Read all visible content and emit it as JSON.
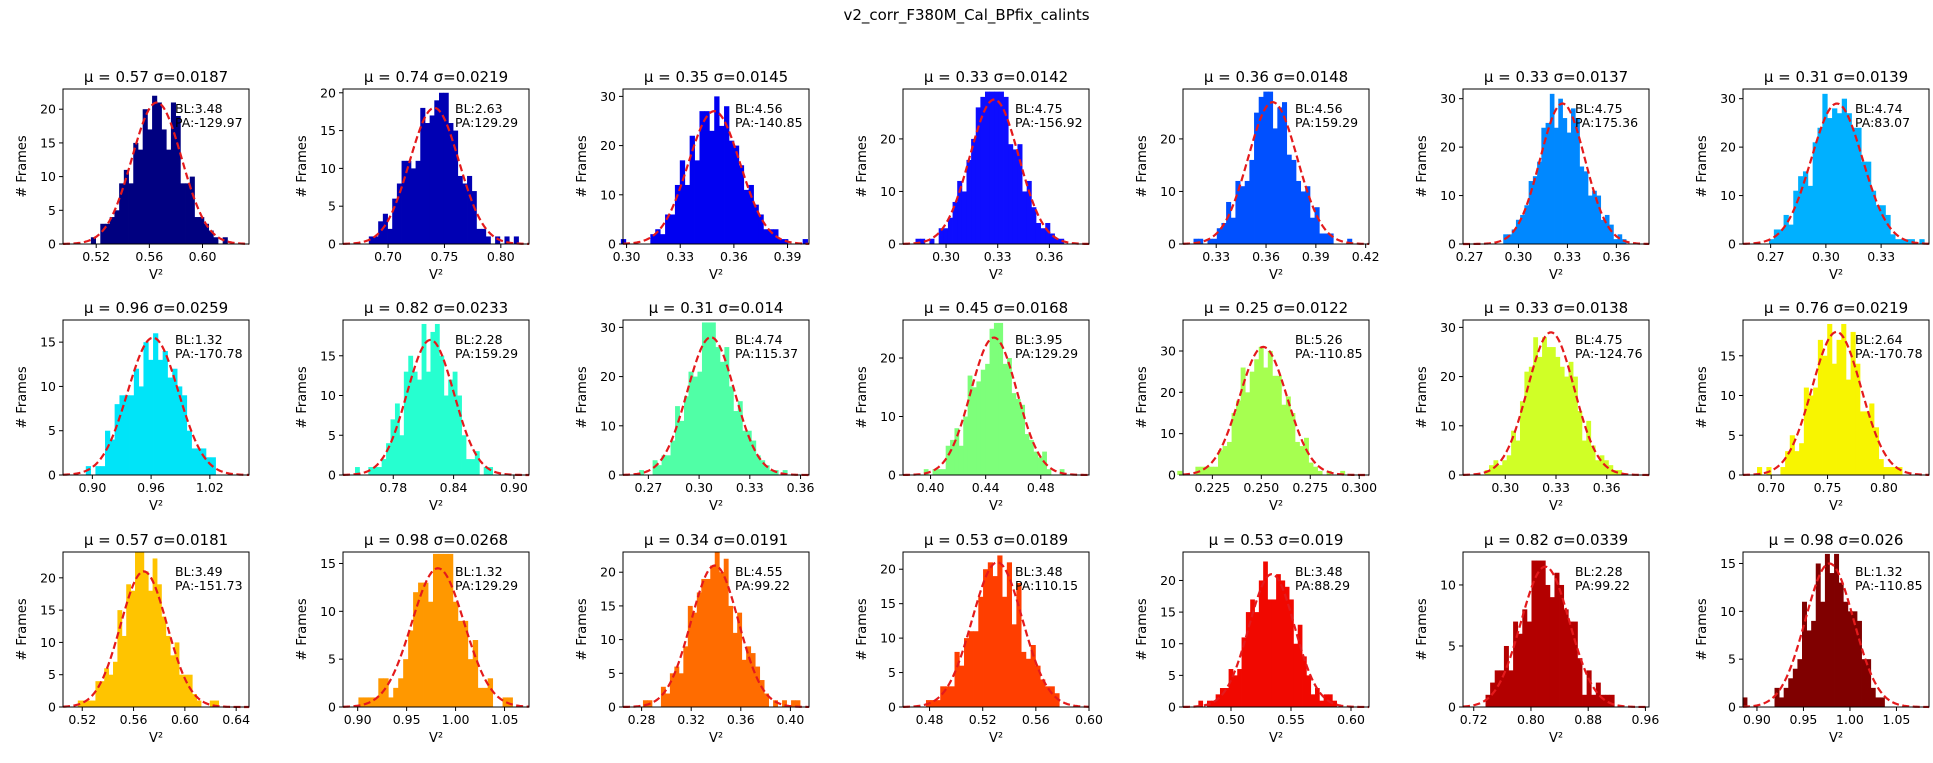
{
  "figure": {
    "suptitle": "v2_corr_F380M_Cal_BPfix_calints",
    "xlabel": "V²",
    "ylabel": "# Frames",
    "fit_color": "#e41a1c"
  },
  "chart_data": [
    {
      "type": "bar",
      "title": "μ = 0.57 σ=0.0187",
      "color": "#000080",
      "mu": 0.5656,
      "sigma": 0.0187,
      "peak": 21,
      "xlim": [
        0.495,
        0.635
      ],
      "ylim": [
        0,
        23
      ],
      "xticks": [
        "0.52",
        "0.56",
        "0.60"
      ],
      "xtick_values": [
        0.52,
        0.56,
        0.6
      ],
      "yticks": [
        0,
        5,
        10,
        15,
        20
      ],
      "annotation": [
        "BL:3.48",
        "PA:-129.97"
      ]
    },
    {
      "type": "bar",
      "title": "μ = 0.74 σ=0.0219",
      "color": "#0000b3",
      "mu": 0.741,
      "sigma": 0.0219,
      "peak": 18,
      "xlim": [
        0.66,
        0.825
      ],
      "ylim": [
        0,
        20.5
      ],
      "xticks": [
        "0.70",
        "0.75",
        "0.80"
      ],
      "xtick_values": [
        0.7,
        0.75,
        0.8
      ],
      "yticks": [
        0,
        5,
        10,
        15,
        20
      ],
      "annotation": [
        "BL:2.63",
        "PA:129.29"
      ]
    },
    {
      "type": "bar",
      "title": "μ = 0.35 σ=0.0145",
      "color": "#0000f1",
      "mu": 0.349,
      "sigma": 0.0145,
      "peak": 27,
      "xlim": [
        0.298,
        0.402
      ],
      "ylim": [
        0,
        31.5
      ],
      "xticks": [
        "0.30",
        "0.33",
        "0.36",
        "0.39"
      ],
      "xtick_values": [
        0.3,
        0.33,
        0.36,
        0.39
      ],
      "yticks": [
        0,
        10,
        20,
        30
      ],
      "annotation": [
        "BL:4.56",
        "PA:-140.85"
      ]
    },
    {
      "type": "bar",
      "title": "μ = 0.33 σ=0.0142",
      "color": "#0d0dff",
      "mu": 0.328,
      "sigma": 0.0142,
      "peak": 27.5,
      "xlim": [
        0.275,
        0.383
      ],
      "ylim": [
        0,
        29.5
      ],
      "xticks": [
        "0.30",
        "0.33",
        "0.36"
      ],
      "xtick_values": [
        0.3,
        0.33,
        0.36
      ],
      "yticks": [
        0,
        10,
        20
      ],
      "annotation": [
        "BL:4.75",
        "PA:-156.92"
      ]
    },
    {
      "type": "bar",
      "title": "μ = 0.36 σ=0.0148",
      "color": "#0050ff",
      "mu": 0.364,
      "sigma": 0.0148,
      "peak": 27,
      "xlim": [
        0.31,
        0.422
      ],
      "ylim": [
        0,
        29.5
      ],
      "xticks": [
        "0.33",
        "0.36",
        "0.39",
        "0.42"
      ],
      "xtick_values": [
        0.33,
        0.36,
        0.39,
        0.42
      ],
      "yticks": [
        0,
        10,
        20
      ],
      "annotation": [
        "BL:4.56",
        "PA:159.29"
      ]
    },
    {
      "type": "bar",
      "title": "μ = 0.33 σ=0.0137",
      "color": "#0088ff",
      "mu": 0.327,
      "sigma": 0.0137,
      "peak": 29,
      "xlim": [
        0.266,
        0.38
      ],
      "ylim": [
        0,
        32
      ],
      "xticks": [
        "0.27",
        "0.30",
        "0.33",
        "0.36"
      ],
      "xtick_values": [
        0.27,
        0.3,
        0.33,
        0.36
      ],
      "yticks": [
        0,
        10,
        20,
        30
      ],
      "annotation": [
        "BL:4.75",
        "PA:175.36"
      ]
    },
    {
      "type": "bar",
      "title": "μ = 0.31 σ=0.0139",
      "color": "#00b0ff",
      "mu": 0.306,
      "sigma": 0.0139,
      "peak": 29,
      "xlim": [
        0.255,
        0.356
      ],
      "ylim": [
        0,
        32
      ],
      "xticks": [
        "0.27",
        "0.30",
        "0.33"
      ],
      "xtick_values": [
        0.27,
        0.3,
        0.33
      ],
      "yticks": [
        0,
        10,
        20,
        30
      ],
      "annotation": [
        "BL:4.74",
        "PA:83.07"
      ]
    },
    {
      "type": "bar",
      "title": "μ = 0.96 σ=0.0259",
      "color": "#00e4f8",
      "mu": 0.962,
      "sigma": 0.0259,
      "peak": 15.5,
      "xlim": [
        0.87,
        1.06
      ],
      "ylim": [
        0,
        17.5
      ],
      "xticks": [
        "0.90",
        "0.96",
        "1.02"
      ],
      "xtick_values": [
        0.9,
        0.96,
        1.02
      ],
      "yticks": [
        0,
        5,
        10,
        15
      ],
      "annotation": [
        "BL:1.32",
        "PA:-170.78"
      ]
    },
    {
      "type": "bar",
      "title": "μ = 0.82 σ=0.0233",
      "color": "#26ffd0",
      "mu": 0.817,
      "sigma": 0.0233,
      "peak": 17,
      "xlim": [
        0.73,
        0.915
      ],
      "ylim": [
        0,
        19.5
      ],
      "xticks": [
        "0.78",
        "0.84",
        "0.90"
      ],
      "xtick_values": [
        0.78,
        0.84,
        0.9
      ],
      "yticks": [
        0,
        5,
        10,
        15
      ],
      "annotation": [
        "BL:2.28",
        "PA:159.29"
      ]
    },
    {
      "type": "bar",
      "title": "μ = 0.31 σ=0.014",
      "color": "#50ffa6",
      "mu": 0.307,
      "sigma": 0.014,
      "peak": 28,
      "xlim": [
        0.255,
        0.365
      ],
      "ylim": [
        0,
        31.5
      ],
      "xticks": [
        "0.27",
        "0.30",
        "0.33",
        "0.36"
      ],
      "xtick_values": [
        0.27,
        0.3,
        0.33,
        0.36
      ],
      "yticks": [
        0,
        10,
        20,
        30
      ],
      "annotation": [
        "BL:4.74",
        "PA:115.37"
      ]
    },
    {
      "type": "bar",
      "title": "μ = 0.45 σ=0.0168",
      "color": "#7dff7a",
      "mu": 0.446,
      "sigma": 0.0168,
      "peak": 23.5,
      "xlim": [
        0.38,
        0.515
      ],
      "ylim": [
        0,
        26.5
      ],
      "xticks": [
        "0.40",
        "0.44",
        "0.48"
      ],
      "xtick_values": [
        0.4,
        0.44,
        0.48
      ],
      "yticks": [
        0,
        10,
        20
      ],
      "annotation": [
        "BL:3.95",
        "PA:129.29"
      ]
    },
    {
      "type": "bar",
      "title": "μ = 0.25 σ=0.0122",
      "color": "#a6ff50",
      "mu": 0.251,
      "sigma": 0.0122,
      "peak": 31,
      "xlim": [
        0.21,
        0.305
      ],
      "ylim": [
        0,
        37.5
      ],
      "xticks": [
        "0.225",
        "0.250",
        "0.275",
        "0.300"
      ],
      "xtick_values": [
        0.225,
        0.25,
        0.275,
        0.3
      ],
      "yticks": [
        0,
        10,
        20,
        30
      ],
      "annotation": [
        "BL:5.26",
        "PA:-110.85"
      ]
    },
    {
      "type": "bar",
      "title": "μ = 0.33 σ=0.0138",
      "color": "#d0ff26",
      "mu": 0.327,
      "sigma": 0.0138,
      "peak": 29,
      "xlim": [
        0.275,
        0.385
      ],
      "ylim": [
        0,
        31.5
      ],
      "xticks": [
        "0.30",
        "0.33",
        "0.36"
      ],
      "xtick_values": [
        0.3,
        0.33,
        0.36
      ],
      "yticks": [
        0,
        10,
        20,
        30
      ],
      "annotation": [
        "BL:4.75",
        "PA:-124.76"
      ]
    },
    {
      "type": "bar",
      "title": "μ = 0.76 σ=0.0219",
      "color": "#f8f500",
      "mu": 0.758,
      "sigma": 0.0219,
      "peak": 18,
      "xlim": [
        0.675,
        0.84
      ],
      "ylim": [
        0,
        19.5
      ],
      "xticks": [
        "0.70",
        "0.75",
        "0.80"
      ],
      "xtick_values": [
        0.7,
        0.75,
        0.8
      ],
      "yticks": [
        0,
        5,
        10,
        15
      ],
      "annotation": [
        "BL:2.64",
        "PA:-170.78"
      ]
    },
    {
      "type": "bar",
      "title": "μ = 0.57 σ=0.0181",
      "color": "#ffc400",
      "mu": 0.568,
      "sigma": 0.0181,
      "peak": 21,
      "xlim": [
        0.505,
        0.65
      ],
      "ylim": [
        0,
        24
      ],
      "xticks": [
        "0.52",
        "0.56",
        "0.60",
        "0.64"
      ],
      "xtick_values": [
        0.52,
        0.56,
        0.6,
        0.64
      ],
      "yticks": [
        0,
        5,
        10,
        15,
        20
      ],
      "annotation": [
        "BL:3.49",
        "PA:-151.73"
      ]
    },
    {
      "type": "bar",
      "title": "μ = 0.98 σ=0.0268",
      "color": "#ff9800",
      "mu": 0.982,
      "sigma": 0.0268,
      "peak": 14.5,
      "xlim": [
        0.885,
        1.075
      ],
      "ylim": [
        0,
        16.2
      ],
      "xticks": [
        "0.90",
        "0.95",
        "1.00",
        "1.05"
      ],
      "xtick_values": [
        0.9,
        0.95,
        1.0,
        1.05
      ],
      "yticks": [
        0,
        5,
        10,
        15
      ],
      "annotation": [
        "BL:1.32",
        "PA:129.29"
      ]
    },
    {
      "type": "bar",
      "title": "μ = 0.34 σ=0.0191",
      "color": "#ff6c00",
      "mu": 0.339,
      "sigma": 0.0191,
      "peak": 21,
      "xlim": [
        0.265,
        0.415
      ],
      "ylim": [
        0,
        23
      ],
      "xticks": [
        "0.28",
        "0.32",
        "0.36",
        "0.40"
      ],
      "xtick_values": [
        0.28,
        0.32,
        0.36,
        0.4
      ],
      "yticks": [
        0,
        5,
        10,
        15,
        20
      ],
      "annotation": [
        "BL:4.55",
        "PA:99.22"
      ]
    },
    {
      "type": "bar",
      "title": "μ = 0.53 σ=0.0189",
      "color": "#ff3e00",
      "mu": 0.531,
      "sigma": 0.0189,
      "peak": 21,
      "xlim": [
        0.46,
        0.6
      ],
      "ylim": [
        0,
        22.5
      ],
      "xticks": [
        "0.48",
        "0.52",
        "0.56",
        "0.60"
      ],
      "xtick_values": [
        0.48,
        0.52,
        0.56,
        0.6
      ],
      "yticks": [
        0,
        5,
        10,
        15,
        20
      ],
      "annotation": [
        "BL:3.48",
        "PA:110.15"
      ]
    },
    {
      "type": "bar",
      "title": "μ = 0.53 σ=0.019",
      "color": "#f10800",
      "mu": 0.534,
      "sigma": 0.019,
      "peak": 21,
      "xlim": [
        0.46,
        0.615
      ],
      "ylim": [
        0,
        24.5
      ],
      "xticks": [
        "0.50",
        "0.55",
        "0.60"
      ],
      "xtick_values": [
        0.5,
        0.55,
        0.6
      ],
      "yticks": [
        0,
        5,
        10,
        15,
        20
      ],
      "annotation": [
        "BL:3.48",
        "PA:88.29"
      ]
    },
    {
      "type": "bar",
      "title": "μ = 0.82 σ=0.0339",
      "color": "#b30000",
      "mu": 0.82,
      "sigma": 0.0339,
      "peak": 11.5,
      "xlim": [
        0.705,
        0.965
      ],
      "ylim": [
        0,
        12.7
      ],
      "xticks": [
        "0.72",
        "0.80",
        "0.88",
        "0.96"
      ],
      "xtick_values": [
        0.72,
        0.8,
        0.88,
        0.96
      ],
      "yticks": [
        0,
        5,
        10
      ],
      "annotation": [
        "BL:2.28",
        "PA:99.22"
      ]
    },
    {
      "type": "bar",
      "title": "μ = 0.98 σ=0.026",
      "color": "#800000",
      "mu": 0.978,
      "sigma": 0.026,
      "peak": 15,
      "xlim": [
        0.885,
        1.085
      ],
      "ylim": [
        0,
        16.2
      ],
      "xticks": [
        "0.90",
        "0.95",
        "1.00",
        "1.05"
      ],
      "xtick_values": [
        0.9,
        0.95,
        1.0,
        1.05
      ],
      "yticks": [
        0,
        5,
        10,
        15
      ],
      "annotation": [
        "BL:1.32",
        "PA:-110.85"
      ]
    }
  ]
}
